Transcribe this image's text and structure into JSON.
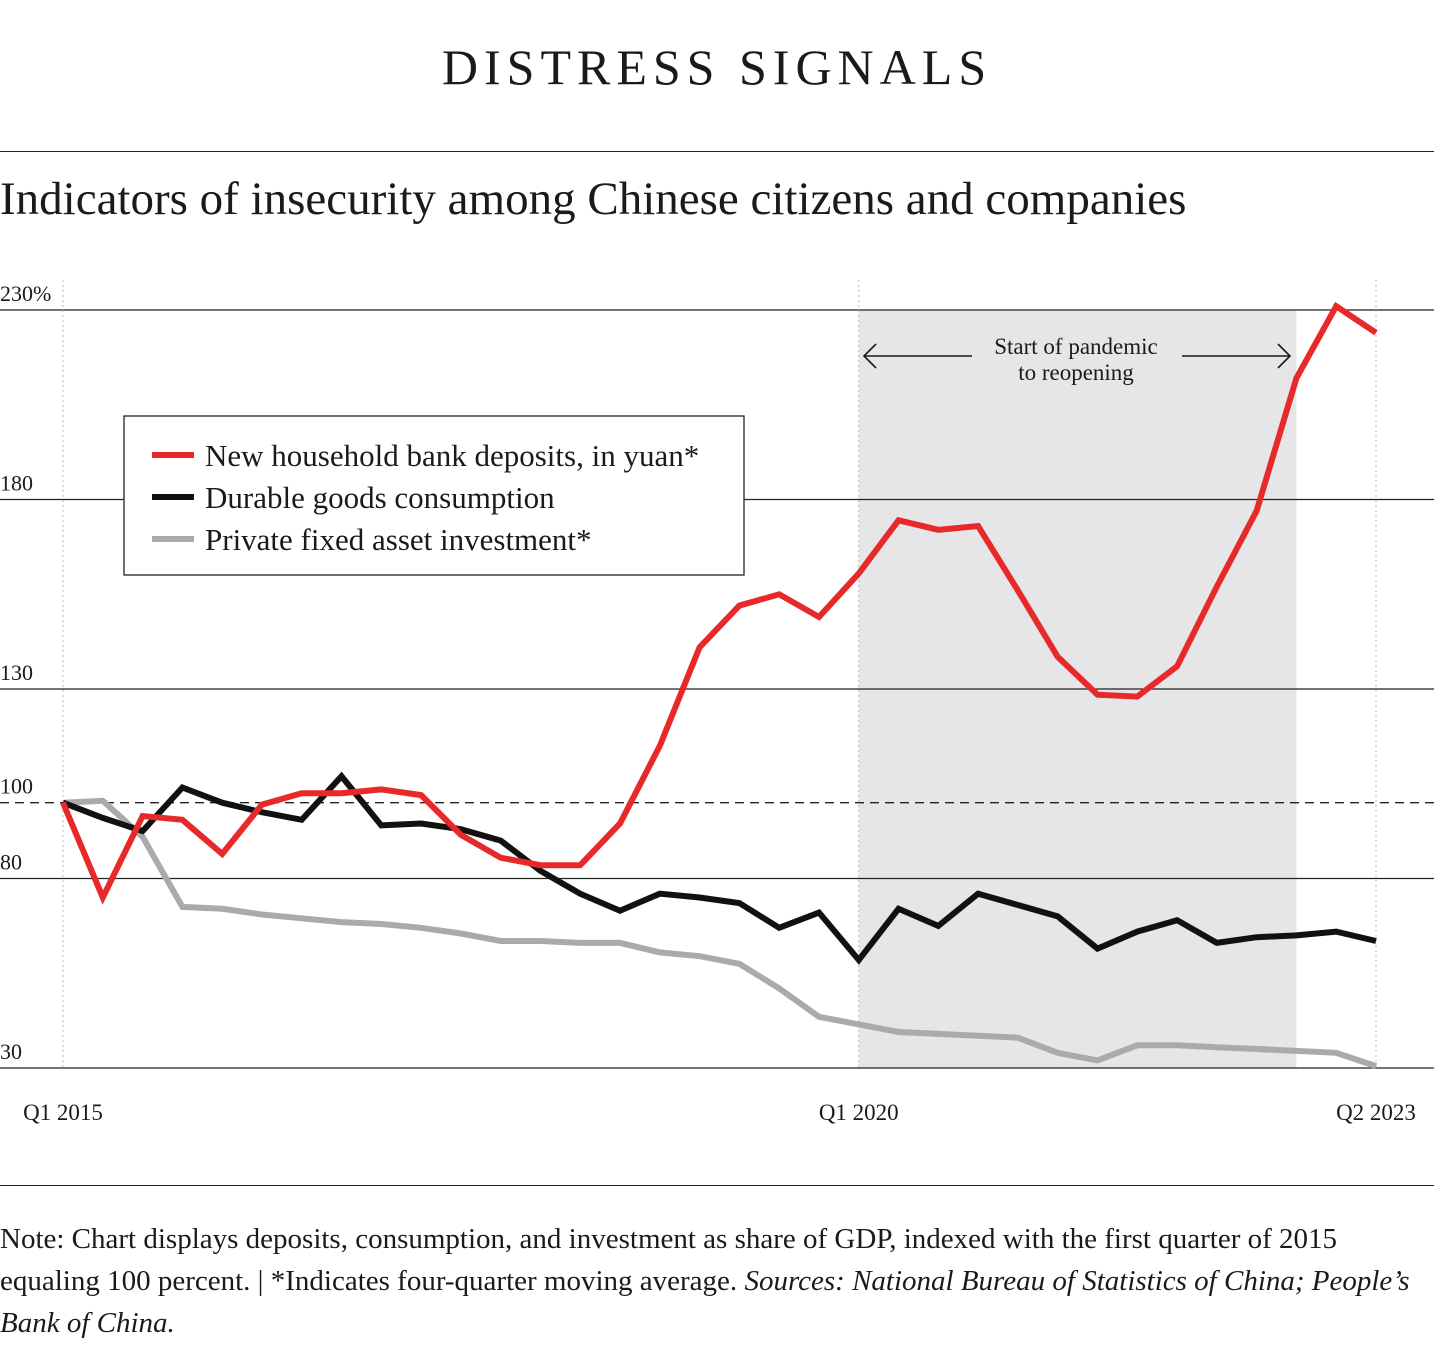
{
  "kicker": "DISTRESS SIGNALS",
  "subtitle": "Indicators of insecurity among Chinese citizens and companies",
  "note": {
    "text": "Note: Chart displays deposits, consumption, and investment as share of GDP, indexed with the first quarter of 2015 equaling 100 percent. | *Indicates four-quarter moving average.",
    "sources": "Sources: National Bureau of Statistics of China; People’s Bank of China."
  },
  "colors": {
    "deposits": "#e8292a",
    "durable": "#111111",
    "private": "#aaaaaa",
    "shade": "#e6e6e8"
  },
  "chart_data": {
    "type": "line",
    "x_labels": [
      "Q1 2015",
      "Q1 2020",
      "Q2 2023"
    ],
    "y_ticks": [
      {
        "value": 230,
        "label": "230%"
      },
      {
        "value": 180,
        "label": "180"
      },
      {
        "value": 130,
        "label": "130"
      },
      {
        "value": 100,
        "label": "100"
      },
      {
        "value": 80,
        "label": "80"
      },
      {
        "value": 30,
        "label": "30"
      }
    ],
    "ylim": [
      30,
      230
    ],
    "baseline": 100,
    "x_count": 34,
    "shaded_range": [
      20,
      31
    ],
    "annotation": {
      "line1": "Start of pandemic",
      "line2": "to reopening"
    },
    "legend_position": "top-left",
    "series": [
      {
        "name": "New household bank deposits, in yuan*",
        "color": "#e8292a",
        "values": [
          100,
          75,
          96.5,
          95.5,
          86.5,
          99.5,
          102.5,
          102.5,
          103.5,
          102,
          91.5,
          85.5,
          83.5,
          83.5,
          94.5,
          115,
          141,
          152,
          155,
          149,
          160.5,
          174.5,
          172,
          173,
          156,
          138.5,
          128.5,
          128,
          136,
          157,
          177,
          212,
          231,
          224
        ]
      },
      {
        "name": "Durable goods consumption",
        "color": "#111111",
        "values": [
          100,
          96,
          92.5,
          104,
          100,
          97.5,
          95.5,
          107,
          94,
          94.5,
          93,
          90,
          82,
          76,
          71.5,
          76,
          75,
          73.5,
          67,
          71,
          58.5,
          72,
          67.5,
          76,
          73,
          70,
          61.5,
          66,
          69,
          63,
          64.5,
          65,
          66,
          63.5
        ]
      },
      {
        "name": "Private fixed asset investment*",
        "color": "#aaaaaa",
        "values": [
          100,
          100.5,
          91,
          72.5,
          72,
          70.5,
          69.5,
          68.5,
          68,
          67,
          65.5,
          63.5,
          63.5,
          63,
          63,
          60.5,
          59.5,
          57.5,
          51,
          43.5,
          41.5,
          39.5,
          39,
          38.5,
          38,
          34,
          32,
          36,
          36,
          35.5,
          35,
          34.5,
          34,
          30.5
        ]
      }
    ]
  }
}
